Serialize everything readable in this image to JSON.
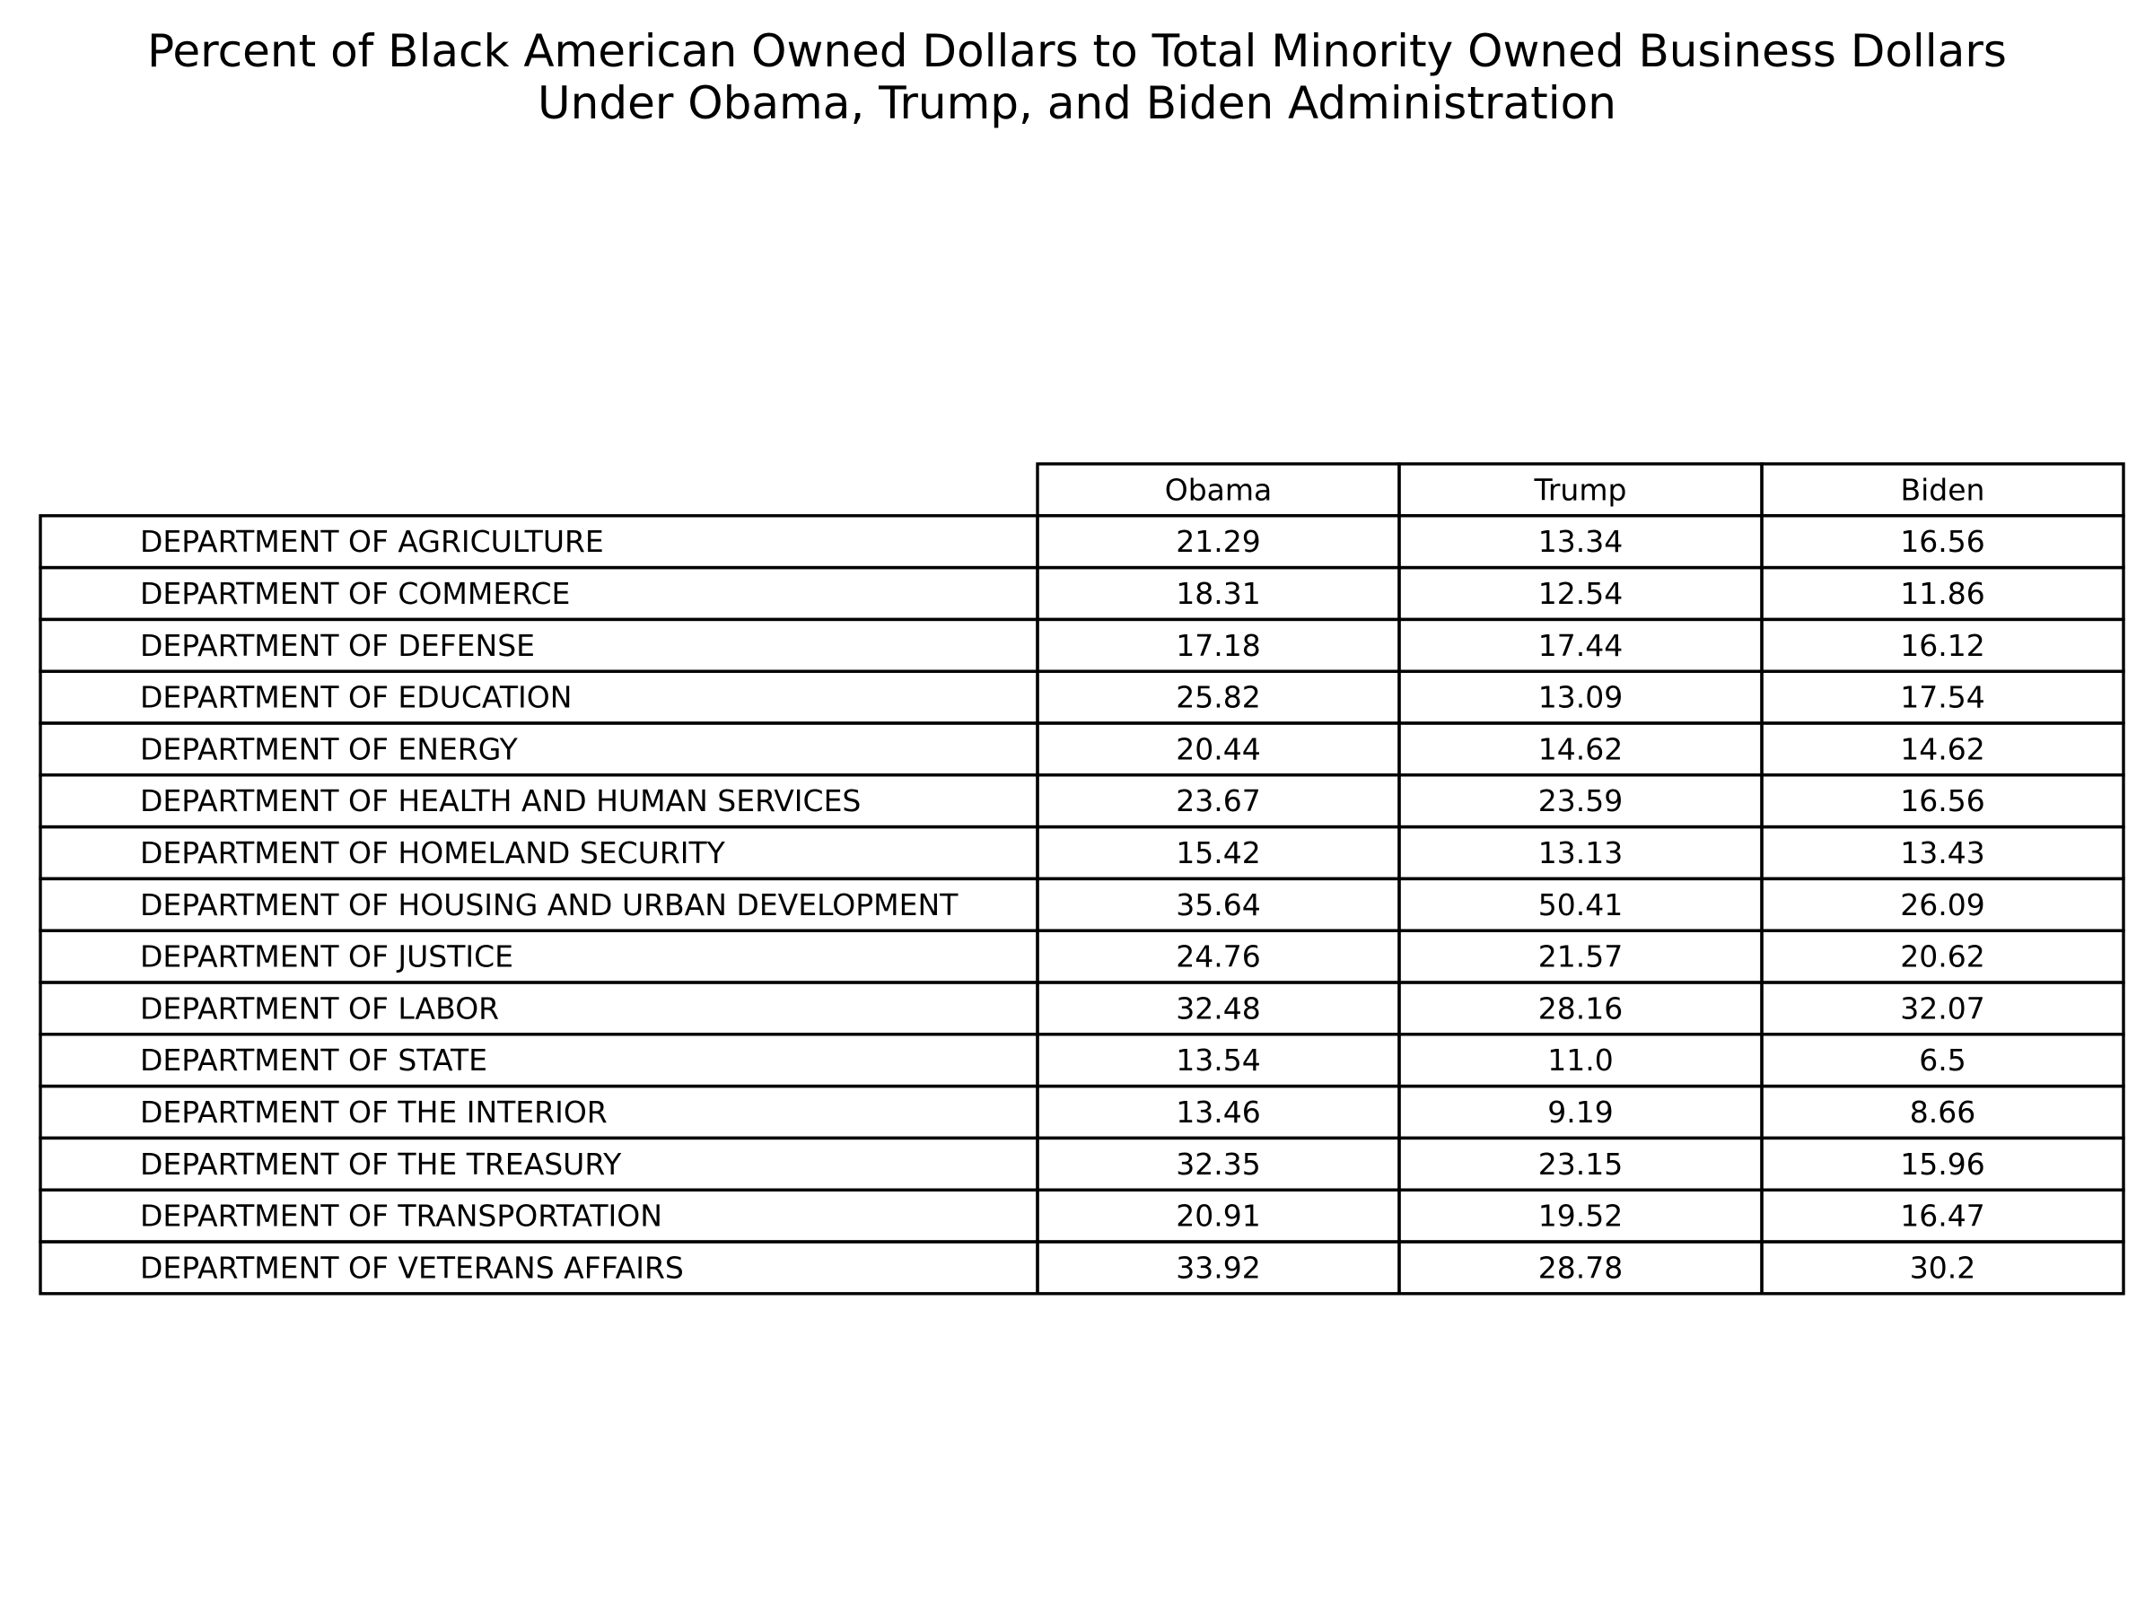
{
  "chart_data": {
    "type": "table",
    "title_lines": [
      "Percent of Black American Owned Dollars to Total Minority Owned Business Dollars",
      "Under Obama, Trump, and Biden Administration"
    ],
    "columns": [
      "Obama",
      "Trump",
      "Biden"
    ],
    "rows": [
      {
        "label": "DEPARTMENT OF AGRICULTURE",
        "values": [
          "21.29",
          "13.34",
          "16.56"
        ]
      },
      {
        "label": "DEPARTMENT OF COMMERCE",
        "values": [
          "18.31",
          "12.54",
          "11.86"
        ]
      },
      {
        "label": "DEPARTMENT OF DEFENSE",
        "values": [
          "17.18",
          "17.44",
          "16.12"
        ]
      },
      {
        "label": "DEPARTMENT OF EDUCATION",
        "values": [
          "25.82",
          "13.09",
          "17.54"
        ]
      },
      {
        "label": "DEPARTMENT OF ENERGY",
        "values": [
          "20.44",
          "14.62",
          "14.62"
        ]
      },
      {
        "label": "DEPARTMENT OF HEALTH AND HUMAN SERVICES",
        "values": [
          "23.67",
          "23.59",
          "16.56"
        ]
      },
      {
        "label": "DEPARTMENT OF HOMELAND SECURITY",
        "values": [
          "15.42",
          "13.13",
          "13.43"
        ]
      },
      {
        "label": "DEPARTMENT OF HOUSING AND URBAN DEVELOPMENT",
        "values": [
          "35.64",
          "50.41",
          "26.09"
        ]
      },
      {
        "label": "DEPARTMENT OF JUSTICE",
        "values": [
          "24.76",
          "21.57",
          "20.62"
        ]
      },
      {
        "label": "DEPARTMENT OF LABOR",
        "values": [
          "32.48",
          "28.16",
          "32.07"
        ]
      },
      {
        "label": "DEPARTMENT OF STATE",
        "values": [
          "13.54",
          "11.0",
          "6.5"
        ]
      },
      {
        "label": "DEPARTMENT OF THE INTERIOR",
        "values": [
          "13.46",
          "9.19",
          "8.66"
        ]
      },
      {
        "label": "DEPARTMENT OF THE TREASURY",
        "values": [
          "32.35",
          "23.15",
          "15.96"
        ]
      },
      {
        "label": "DEPARTMENT OF TRANSPORTATION",
        "values": [
          "20.91",
          "19.52",
          "16.47"
        ]
      },
      {
        "label": "DEPARTMENT OF VETERANS AFFAIRS",
        "values": [
          "33.92",
          "28.78",
          "30.2"
        ]
      }
    ]
  }
}
